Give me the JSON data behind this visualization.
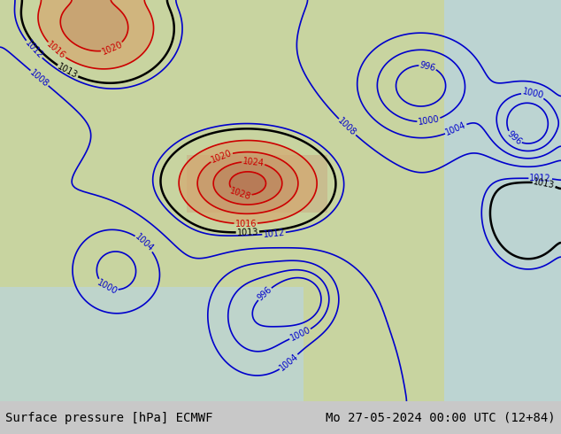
{
  "title_left": "Surface pressure [hPa] ECMWF",
  "title_right": "Mo 27-05-2024 00:00 UTC (12+84)",
  "title_fontsize": 10,
  "fig_width": 6.34,
  "fig_height": 4.9,
  "dpi": 100,
  "map_extent_lon": [
    35,
    155
  ],
  "map_extent_lat": [
    -5,
    65
  ],
  "ocean_color": "#b8d4e8",
  "land_color": "#c8d4a0",
  "mountain_color": "#d4b88c",
  "tibet_high_color": "#c8906050",
  "bottom_bar_color": "#c8c8c8",
  "blue_color": "#0000cc",
  "red_color": "#cc0000",
  "black_color": "#000000",
  "contour_lw": 1.2,
  "label_fs": 7,
  "bottom_text_color": "#000000"
}
